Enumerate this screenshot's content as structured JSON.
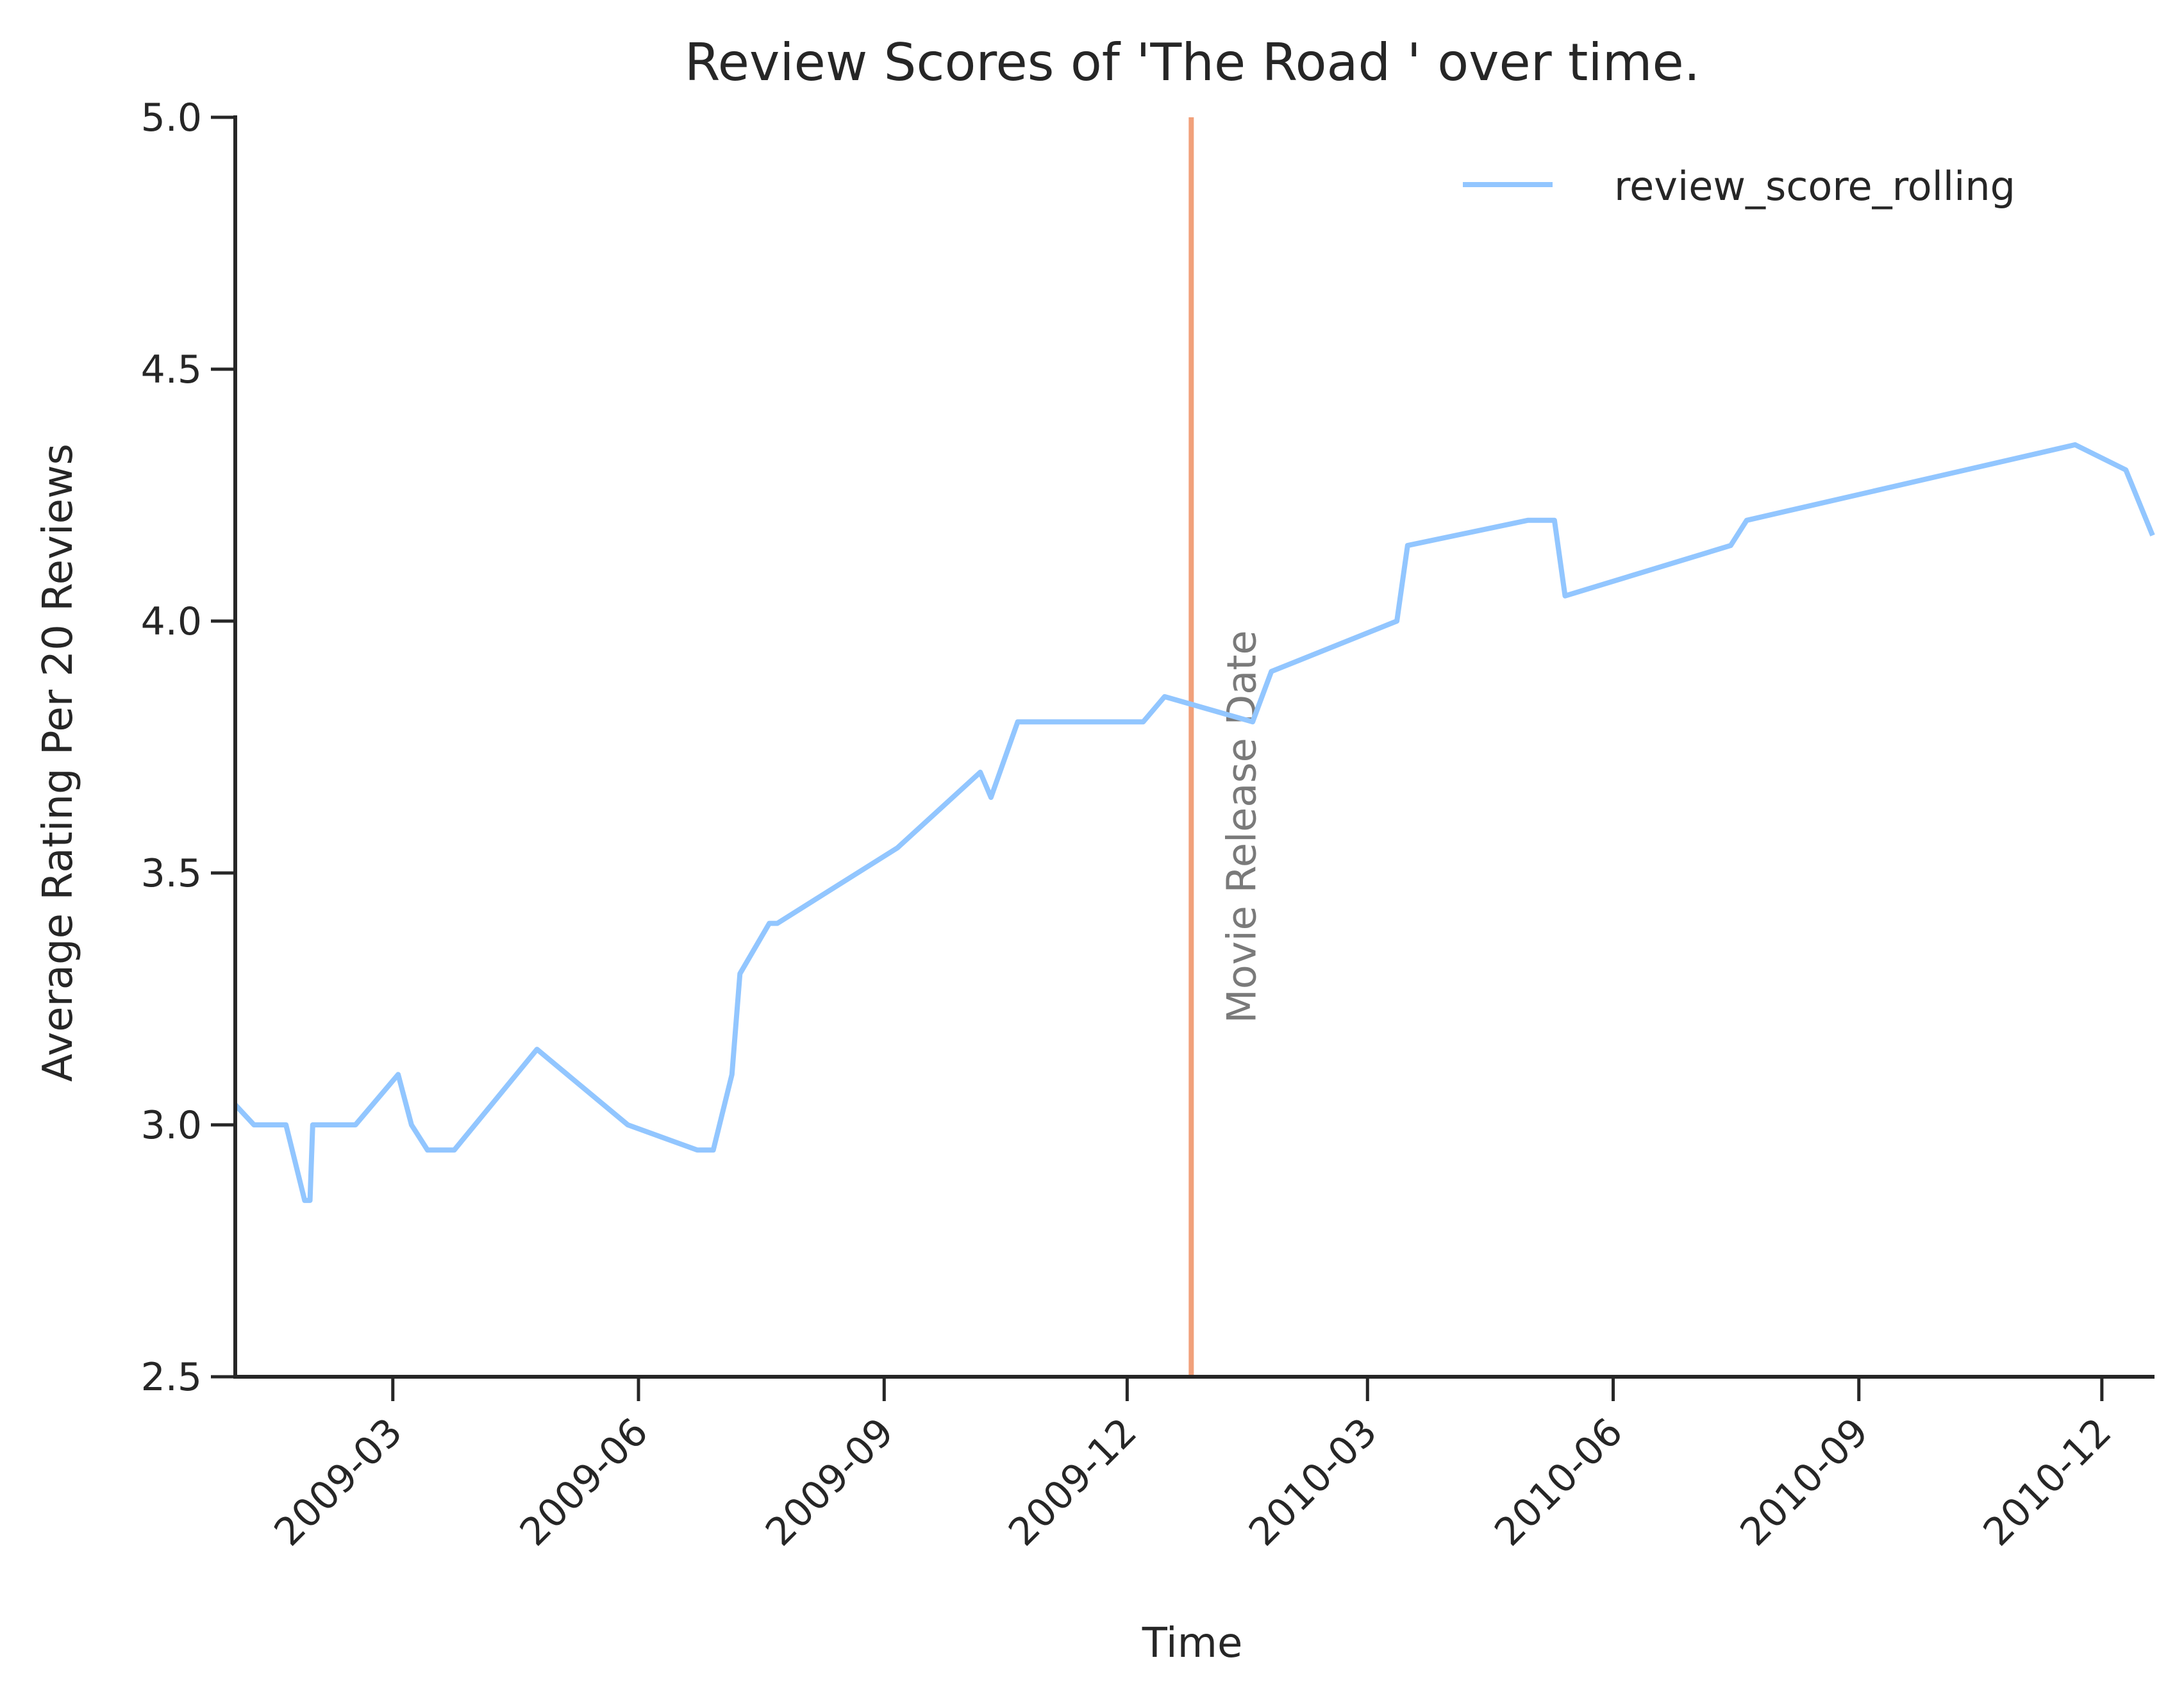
{
  "chart_data": {
    "type": "line",
    "title": "Review Scores of 'The Road ' over time.",
    "xlabel": "Time",
    "ylabel": "Average Rating Per 20 Reviews",
    "x_axis_type": "date",
    "xlim": [
      "2009-01-01",
      "2010-12-20"
    ],
    "ylim": [
      2.5,
      5.0
    ],
    "x_ticks": [
      "2009-03",
      "2009-06",
      "2009-09",
      "2009-12",
      "2010-03",
      "2010-06",
      "2010-09",
      "2010-12"
    ],
    "y_ticks": [
      "2.5",
      "3.0",
      "3.5",
      "4.0",
      "4.5",
      "5.0"
    ],
    "grid": false,
    "legend_position": "top-right",
    "series": [
      {
        "name": "review_score_rolling",
        "color": "#92c6ff",
        "points": [
          {
            "x": "2009-01-01",
            "y": 3.04
          },
          {
            "x": "2009-01-08",
            "y": 3.0
          },
          {
            "x": "2009-01-20",
            "y": 3.0
          },
          {
            "x": "2009-01-27",
            "y": 2.85
          },
          {
            "x": "2009-01-29",
            "y": 2.85
          },
          {
            "x": "2009-01-30",
            "y": 3.0
          },
          {
            "x": "2009-02-15",
            "y": 3.0
          },
          {
            "x": "2009-03-03",
            "y": 3.1
          },
          {
            "x": "2009-03-08",
            "y": 3.0
          },
          {
            "x": "2009-03-14",
            "y": 2.95
          },
          {
            "x": "2009-03-24",
            "y": 2.95
          },
          {
            "x": "2009-04-24",
            "y": 3.15
          },
          {
            "x": "2009-05-28",
            "y": 3.0
          },
          {
            "x": "2009-06-23",
            "y": 2.95
          },
          {
            "x": "2009-06-29",
            "y": 2.95
          },
          {
            "x": "2009-07-06",
            "y": 3.1
          },
          {
            "x": "2009-07-09",
            "y": 3.3
          },
          {
            "x": "2009-07-20",
            "y": 3.4
          },
          {
            "x": "2009-07-23",
            "y": 3.4
          },
          {
            "x": "2009-09-06",
            "y": 3.55
          },
          {
            "x": "2009-10-07",
            "y": 3.7
          },
          {
            "x": "2009-10-11",
            "y": 3.65
          },
          {
            "x": "2009-10-21",
            "y": 3.8
          },
          {
            "x": "2009-12-07",
            "y": 3.8
          },
          {
            "x": "2009-12-15",
            "y": 3.85
          },
          {
            "x": "2010-01-17",
            "y": 3.8
          },
          {
            "x": "2010-01-24",
            "y": 3.9
          },
          {
            "x": "2010-03-12",
            "y": 4.0
          },
          {
            "x": "2010-03-16",
            "y": 4.15
          },
          {
            "x": "2010-04-30",
            "y": 4.2
          },
          {
            "x": "2010-05-10",
            "y": 4.2
          },
          {
            "x": "2010-05-14",
            "y": 4.05
          },
          {
            "x": "2010-07-15",
            "y": 4.15
          },
          {
            "x": "2010-07-21",
            "y": 4.2
          },
          {
            "x": "2010-11-21",
            "y": 4.35
          },
          {
            "x": "2010-12-10",
            "y": 4.3
          },
          {
            "x": "2010-12-20",
            "y": 4.17
          }
        ]
      }
    ],
    "annotations": [
      {
        "type": "vertical_line",
        "x": "2009-12-25",
        "label": "Movie Release Date",
        "color": "#f1a17b",
        "label_color": "#7a7a7a"
      }
    ]
  }
}
